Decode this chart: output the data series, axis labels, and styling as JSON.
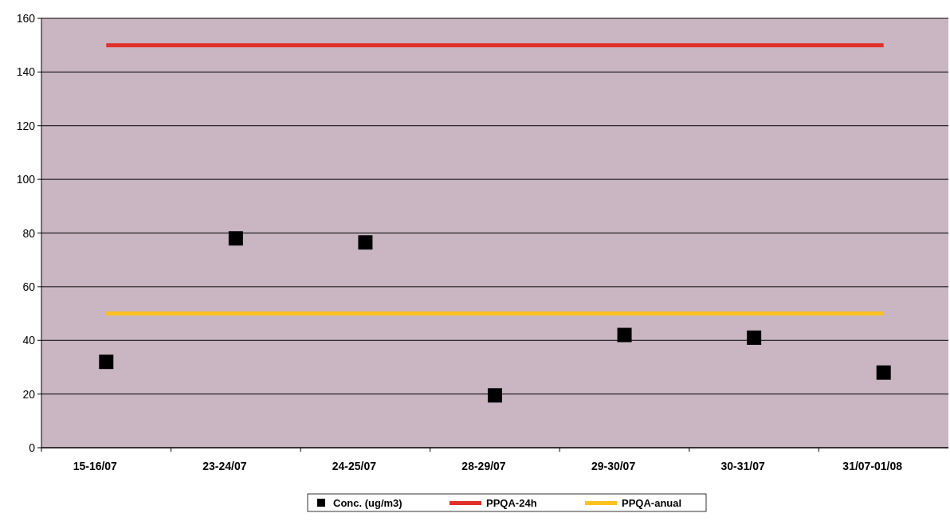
{
  "chart_data": {
    "type": "scatter",
    "categories": [
      "15-16/07",
      "23-24/07",
      "24-25/07",
      "28-29/07",
      "29-30/07",
      "30-31/07",
      "31/07-01/08"
    ],
    "series": [
      {
        "name": "Conc. (ug/m3)",
        "color": "#000000",
        "marker": "square",
        "values": [
          32,
          78,
          76.5,
          19.5,
          42,
          41,
          28
        ]
      },
      {
        "name": "PPQA-24h",
        "type": "line",
        "color": "#e0302a",
        "values": [
          150,
          150,
          150,
          150,
          150,
          150,
          150
        ]
      },
      {
        "name": "PPQA-anual",
        "type": "line",
        "color": "#ffc020",
        "values": [
          50,
          50,
          50,
          50,
          50,
          50,
          50
        ]
      }
    ],
    "ylim": [
      0,
      160
    ],
    "yticks": [
      0,
      20,
      40,
      60,
      80,
      100,
      120,
      140,
      160
    ],
    "grid": "y",
    "legend": "bottom"
  }
}
